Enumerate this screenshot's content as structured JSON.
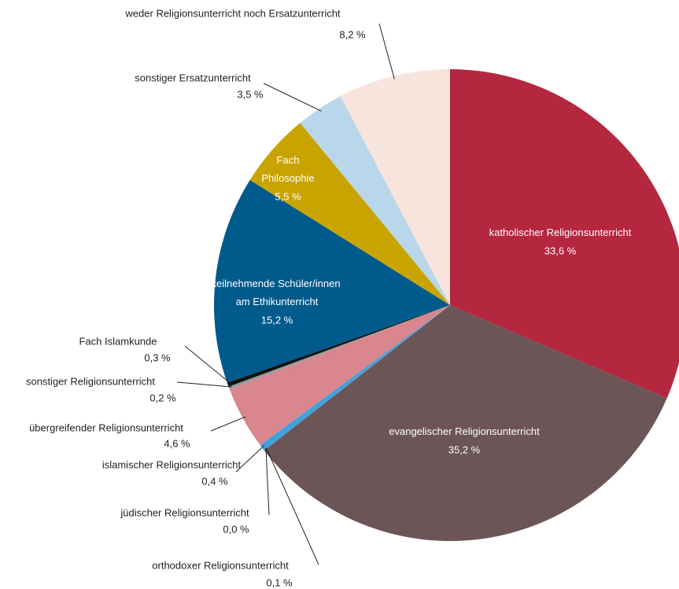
{
  "chart_data": {
    "type": "pie",
    "categories": [
      "katholischer Religionsunterricht",
      "evangelischer Religionsunterricht",
      "orthodoxer Religionsunterricht",
      "jüdischer Religionsunterricht",
      "islamischer Religionsunterricht",
      "übergreifender Religionsunterricht",
      "sonstiger Religionsunterricht",
      "Fach Islamkunde",
      "teilnehmende Schüler/innen am Ethikunterricht",
      "Fach Philosophie",
      "sonstiger Ersatzunterricht",
      "weder Religionsunterricht noch Ersatzunterricht"
    ],
    "values": [
      33.6,
      35.2,
      0.1,
      0.0,
      0.4,
      4.6,
      0.2,
      0.3,
      15.2,
      5.5,
      3.5,
      8.2
    ],
    "value_labels": [
      "33,6 %",
      "35,2 %",
      "0,1 %",
      "0,0 %",
      "0,4 %",
      "4,6 %",
      "0,2 %",
      "0,3 %",
      "15,2 %",
      "5,5 %",
      "3,5 %",
      "8,2 %"
    ],
    "colors": [
      "#b5263f",
      "#6b5557",
      "#4a90c8",
      "#2f6fa8",
      "#3fa2de",
      "#d9868e",
      "#9a9a9a",
      "#111111",
      "#005a8c",
      "#c9a400",
      "#b9d7ea",
      "#f7e4dc"
    ]
  }
}
